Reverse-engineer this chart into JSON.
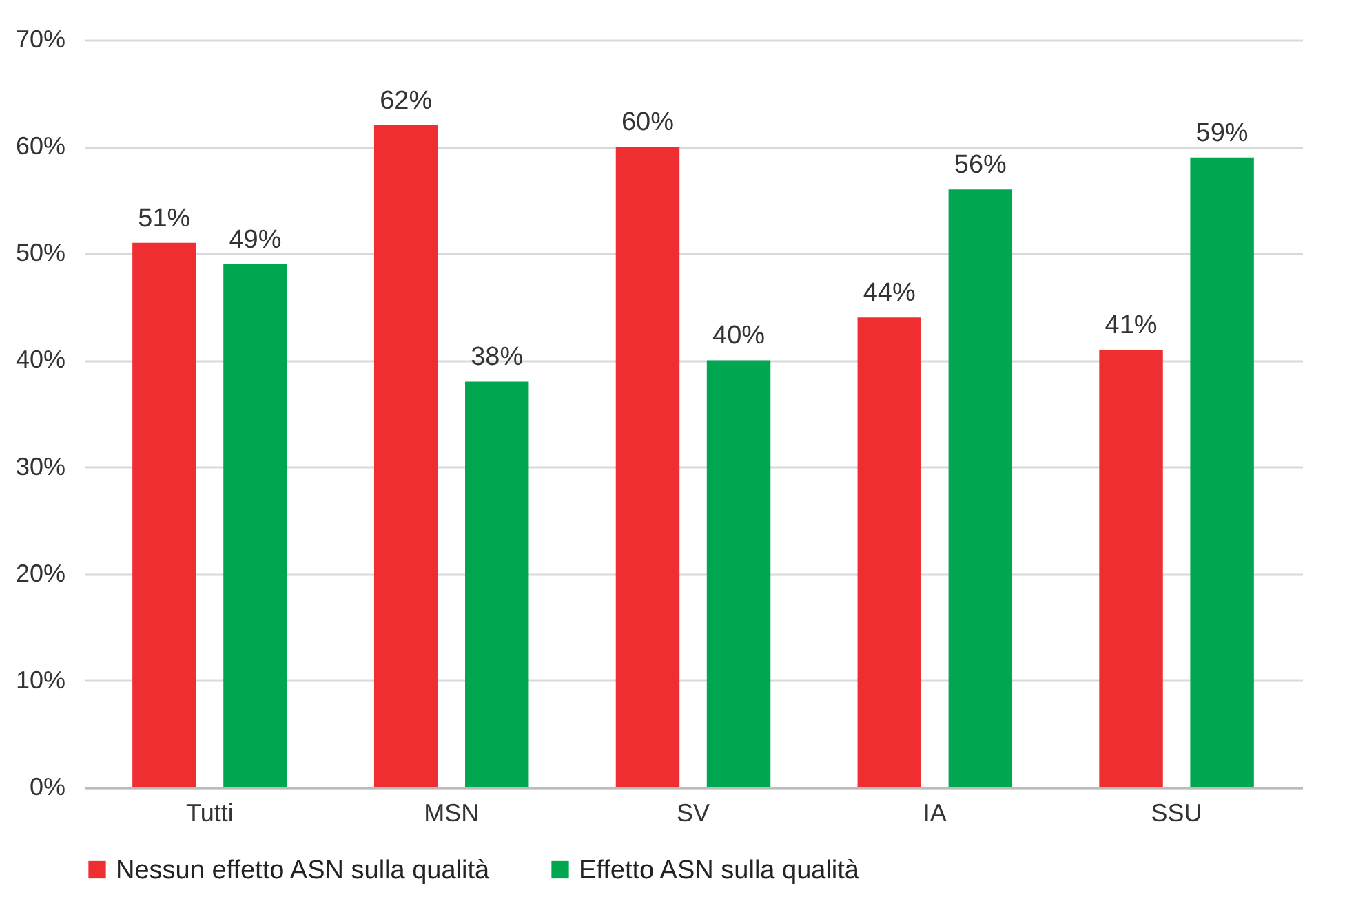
{
  "chart_data": {
    "type": "bar",
    "categories": [
      "Tutti",
      "MSN",
      "SV",
      "IA",
      "SSU"
    ],
    "series": [
      {
        "name": "Nessun effetto ASN sulla qualità",
        "color": "#ee2e31",
        "values": [
          51,
          62,
          60,
          44,
          41
        ],
        "value_labels": [
          "51%",
          "62%",
          "60%",
          "44%",
          "41%"
        ]
      },
      {
        "name": "Effetto ASN sulla qualità",
        "color": "#00a650",
        "values": [
          49,
          38,
          40,
          56,
          59
        ],
        "value_labels": [
          "49%",
          "38%",
          "40%",
          "56%",
          "59%"
        ]
      }
    ],
    "ylim": [
      0,
      70
    ],
    "yticks": [
      {
        "value": 0,
        "label": "0%"
      },
      {
        "value": 10,
        "label": "10%"
      },
      {
        "value": 20,
        "label": "20%"
      },
      {
        "value": 30,
        "label": "30%"
      },
      {
        "value": 40,
        "label": "40%"
      },
      {
        "value": 50,
        "label": "50%"
      },
      {
        "value": 60,
        "label": "60%"
      },
      {
        "value": 70,
        "label": "70%"
      }
    ],
    "grid": "y",
    "legend": "bottom"
  }
}
